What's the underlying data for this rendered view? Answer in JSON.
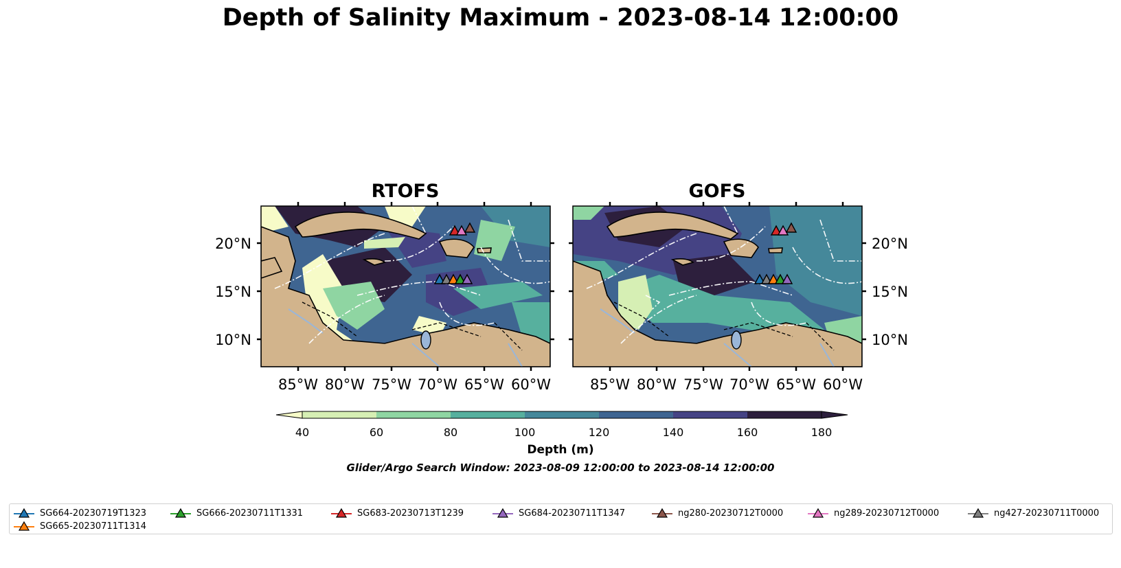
{
  "title": "Depth of Salinity Maximum - 2023-08-14 12:00:00",
  "panels": [
    {
      "title": "RTOFS"
    },
    {
      "title": "GOFS"
    }
  ],
  "axes": {
    "lon_ticks": [
      "85°W",
      "80°W",
      "75°W",
      "70°W",
      "65°W",
      "60°W"
    ],
    "lat_ticks": [
      "20°N",
      "15°N",
      "10°N"
    ]
  },
  "colorbar": {
    "label": "Depth (m)",
    "ticks": [
      "40",
      "60",
      "80",
      "100",
      "120",
      "140",
      "160",
      "180"
    ],
    "extend": "both",
    "colors": [
      "#f7fbc8",
      "#d6efb4",
      "#8fd5a2",
      "#57b09e",
      "#45889a",
      "#3f6591",
      "#454384",
      "#2d1f3d"
    ]
  },
  "search_window": "Glider/Argo Search Window: 2023-08-09 12:00:00 to 2023-08-14 12:00:00",
  "land_color": "#d2b48c",
  "legend": [
    {
      "label": "SG664-20230719T1323",
      "color": "#1f77b4"
    },
    {
      "label": "SG665-20230711T1314",
      "color": "#ff7f0e"
    },
    {
      "label": "SG666-20230711T1331",
      "color": "#2ca02c"
    },
    {
      "label": "SG683-20230713T1239",
      "color": "#d62728"
    },
    {
      "label": "SG684-20230711T1347",
      "color": "#9467bd"
    },
    {
      "label": "ng280-20230712T0000",
      "color": "#8c564b"
    },
    {
      "label": "ng289-20230712T0000",
      "color": "#e377c2"
    },
    {
      "label": "ng427-20230711T0000",
      "color": "#7f7f7f"
    }
  ]
}
